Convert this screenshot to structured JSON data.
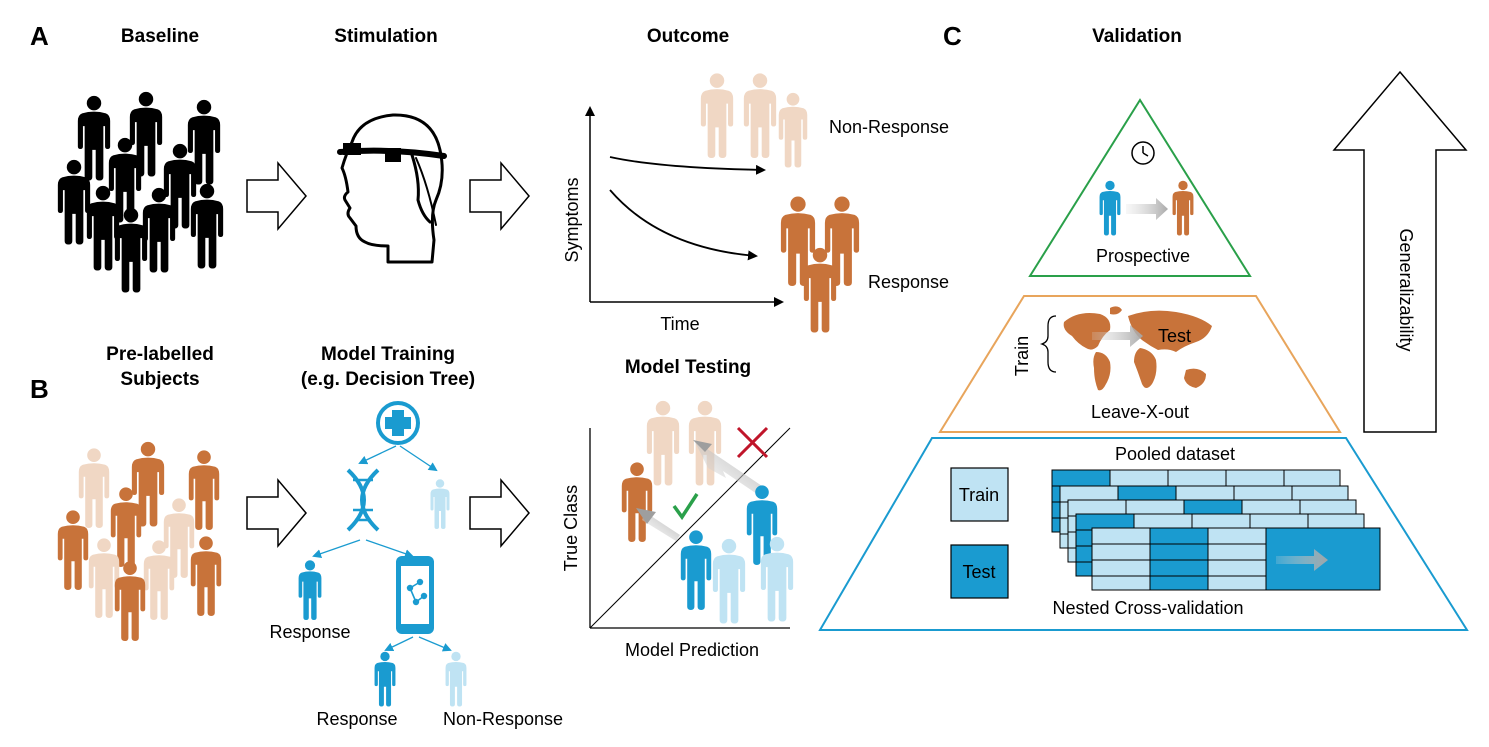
{
  "colors": {
    "black": "#000000",
    "light_skin": "#f0d7c4",
    "orange": "#c8733a",
    "blue": "#1a9bd0",
    "light_blue": "#bfe3f3",
    "green": "#2aa04a",
    "tan": "#e8a55c",
    "red": "#c0152a"
  },
  "panel_a": {
    "letter": "A",
    "baseline": "Baseline",
    "stimulation": "Stimulation",
    "outcome": "Outcome",
    "non_response": "Non-Response",
    "response": "Response",
    "y_axis": "Symptoms",
    "x_axis": "Time"
  },
  "panel_b": {
    "letter": "B",
    "prelabelled_line1": "Pre-labelled",
    "prelabelled_line2": "Subjects",
    "training_line1": "Model Training",
    "training_line2": "(e.g. Decision Tree)",
    "testing": "Model Testing",
    "tree_response_left": "Response",
    "tree_response_bottom": "Response",
    "tree_non_response": "Non-Response",
    "y_axis": "True Class",
    "x_axis": "Model Prediction"
  },
  "panel_c": {
    "letter": "C",
    "title": "Validation",
    "prospective": "Prospective",
    "leave_x_out": "Leave-X-out",
    "train_vertical": "Train",
    "test_map": "Test",
    "pooled_dataset": "Pooled dataset",
    "legend_train": "Train",
    "legend_test": "Test",
    "nested_cv": "Nested Cross-validation",
    "generalizability": "Generalizability"
  }
}
